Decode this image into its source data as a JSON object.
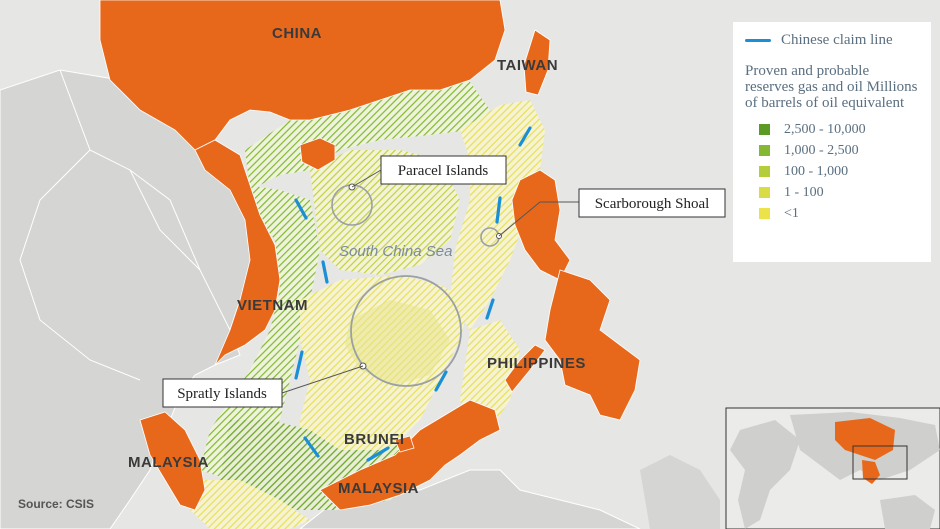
{
  "labels": {
    "china": "CHINA",
    "taiwan": "TAIWAN",
    "vietnam": "VIETNAM",
    "philippines": "PHILIPPINES",
    "malaysia_west": "MALAYSIA",
    "malaysia_east": "MALAYSIA",
    "brunei": "BRUNEI",
    "sea": "South China Sea"
  },
  "callouts": {
    "paracel": "Paracel Islands",
    "scarborough": "Scarborough Shoal",
    "spratly": "Spratly Islands"
  },
  "legend": {
    "claim_line": "Chinese claim line",
    "title": "Proven and probable reserves gas and oil Millions of barrels of oil equivalent",
    "items": [
      {
        "label": "2,500 - 10,000",
        "color": "#5c9a26"
      },
      {
        "label": "1,000 - 2,500",
        "color": "#84b832"
      },
      {
        "label": "100 - 1,000",
        "color": "#b3ce3a"
      },
      {
        "label": "1 - 100",
        "color": "#d9dc44"
      },
      {
        "label": "<1",
        "color": "#ece34a"
      }
    ]
  },
  "source": "Source: CSIS",
  "colors": {
    "land_highlight": "#e8681b",
    "land_other": "#d5d5d3",
    "water": "#e6e6e4",
    "claim_line": "#1a8fd6"
  }
}
